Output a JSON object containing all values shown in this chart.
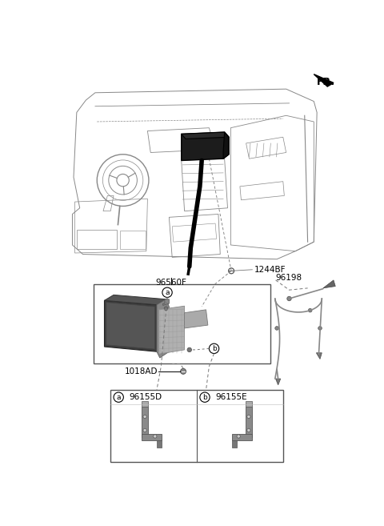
{
  "fig_width": 4.8,
  "fig_height": 6.57,
  "dpi": 100,
  "bg_color": "#ffffff",
  "fr_label": "FR.",
  "lc": "#777777",
  "ec": "#333333",
  "dash_color": "#888888",
  "part_96560F": "96560F",
  "part_1244BF": "1244BF",
  "part_96198": "96198",
  "part_1018AD": "1018AD",
  "part_96155D": "96155D",
  "part_96155E": "96155E"
}
